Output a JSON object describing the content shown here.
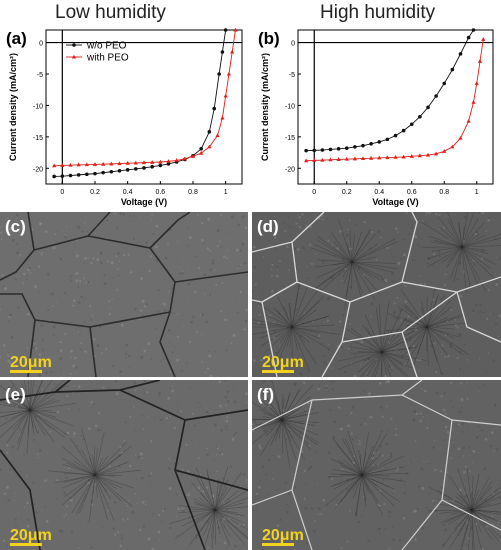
{
  "headers": {
    "left": "Low humidity",
    "right": "High humidity"
  },
  "panels": {
    "a": "(a)",
    "b": "(b)",
    "c": "(c)",
    "d": "(d)",
    "e": "(e)",
    "f": "(f)"
  },
  "scale_bar": "20μm",
  "chart_data": [
    {
      "type": "line",
      "title": "Low humidity",
      "panel": "(a)",
      "xlabel": "Voltage (V)",
      "ylabel": "Current density (mA/cm²)",
      "xlim": [
        -0.1,
        1.1
      ],
      "ylim": [
        -22.5,
        2
      ],
      "xticks": [
        "0",
        "0.2",
        "0.4",
        "0.6",
        "0.8",
        "1"
      ],
      "yticks": [
        "0",
        "-5",
        "-10",
        "-15",
        "-20"
      ],
      "legend": "top-left",
      "series": [
        {
          "name": "w/o PEO",
          "color": "#111111",
          "marker": "circle",
          "x": [
            -0.05,
            0,
            0.05,
            0.1,
            0.15,
            0.2,
            0.25,
            0.3,
            0.35,
            0.4,
            0.45,
            0.5,
            0.55,
            0.6,
            0.65,
            0.7,
            0.75,
            0.8,
            0.85,
            0.9,
            0.93,
            0.96,
            0.98,
            1.0
          ],
          "y": [
            -21.3,
            -21.25,
            -21.15,
            -21.05,
            -20.95,
            -20.85,
            -20.7,
            -20.55,
            -20.4,
            -20.25,
            -20.1,
            -19.95,
            -19.75,
            -19.55,
            -19.3,
            -19.0,
            -18.6,
            -18.0,
            -16.9,
            -14.2,
            -10.5,
            -5.0,
            -1.5,
            2.0
          ]
        },
        {
          "name": "with PEO",
          "color": "#e0201b",
          "marker": "triangle",
          "x": [
            -0.05,
            0,
            0.05,
            0.1,
            0.15,
            0.2,
            0.25,
            0.3,
            0.35,
            0.4,
            0.45,
            0.5,
            0.55,
            0.6,
            0.65,
            0.7,
            0.75,
            0.8,
            0.85,
            0.9,
            0.95,
            0.98,
            1.0,
            1.02,
            1.04,
            1.06
          ],
          "y": [
            -19.6,
            -19.55,
            -19.5,
            -19.45,
            -19.42,
            -19.38,
            -19.35,
            -19.3,
            -19.25,
            -19.2,
            -19.15,
            -19.1,
            -19.05,
            -19.0,
            -18.9,
            -18.75,
            -18.5,
            -18.1,
            -17.6,
            -16.6,
            -14.8,
            -12.0,
            -8.5,
            -5.0,
            -1.5,
            2.0
          ]
        }
      ]
    },
    {
      "type": "line",
      "title": "High humidity",
      "panel": "(b)",
      "xlabel": "Voltage (V)",
      "ylabel": "Current density (mA/cm²)",
      "xlim": [
        -0.1,
        1.1
      ],
      "ylim": [
        -22.5,
        2
      ],
      "xticks": [
        "0",
        "0.2",
        "0.4",
        "0.6",
        "0.8",
        "1"
      ],
      "yticks": [
        "0",
        "-5",
        "-10",
        "-15",
        "-20"
      ],
      "series": [
        {
          "name": "w/o PEO",
          "color": "#111111",
          "marker": "circle",
          "x": [
            -0.05,
            0,
            0.05,
            0.1,
            0.15,
            0.2,
            0.25,
            0.3,
            0.35,
            0.4,
            0.45,
            0.5,
            0.55,
            0.6,
            0.65,
            0.7,
            0.75,
            0.8,
            0.85,
            0.9,
            0.95,
            0.98
          ],
          "y": [
            -17.2,
            -17.15,
            -17.1,
            -17.0,
            -16.9,
            -16.8,
            -16.6,
            -16.4,
            -16.1,
            -15.8,
            -15.4,
            -14.8,
            -14.0,
            -13.0,
            -11.8,
            -10.3,
            -8.5,
            -6.5,
            -4.3,
            -1.8,
            0.8,
            2.0
          ]
        },
        {
          "name": "with PEO",
          "color": "#e0201b",
          "marker": "triangle",
          "x": [
            -0.05,
            0,
            0.05,
            0.1,
            0.15,
            0.2,
            0.25,
            0.3,
            0.35,
            0.4,
            0.45,
            0.5,
            0.55,
            0.6,
            0.65,
            0.7,
            0.75,
            0.8,
            0.85,
            0.9,
            0.95,
            0.98,
            1.0,
            1.02,
            1.04
          ],
          "y": [
            -18.8,
            -18.75,
            -18.7,
            -18.65,
            -18.6,
            -18.55,
            -18.5,
            -18.45,
            -18.4,
            -18.35,
            -18.3,
            -18.25,
            -18.2,
            -18.1,
            -18.0,
            -17.9,
            -17.7,
            -17.3,
            -16.6,
            -15.2,
            -12.5,
            -9.5,
            -6.5,
            -3.0,
            0.5
          ]
        }
      ]
    }
  ]
}
